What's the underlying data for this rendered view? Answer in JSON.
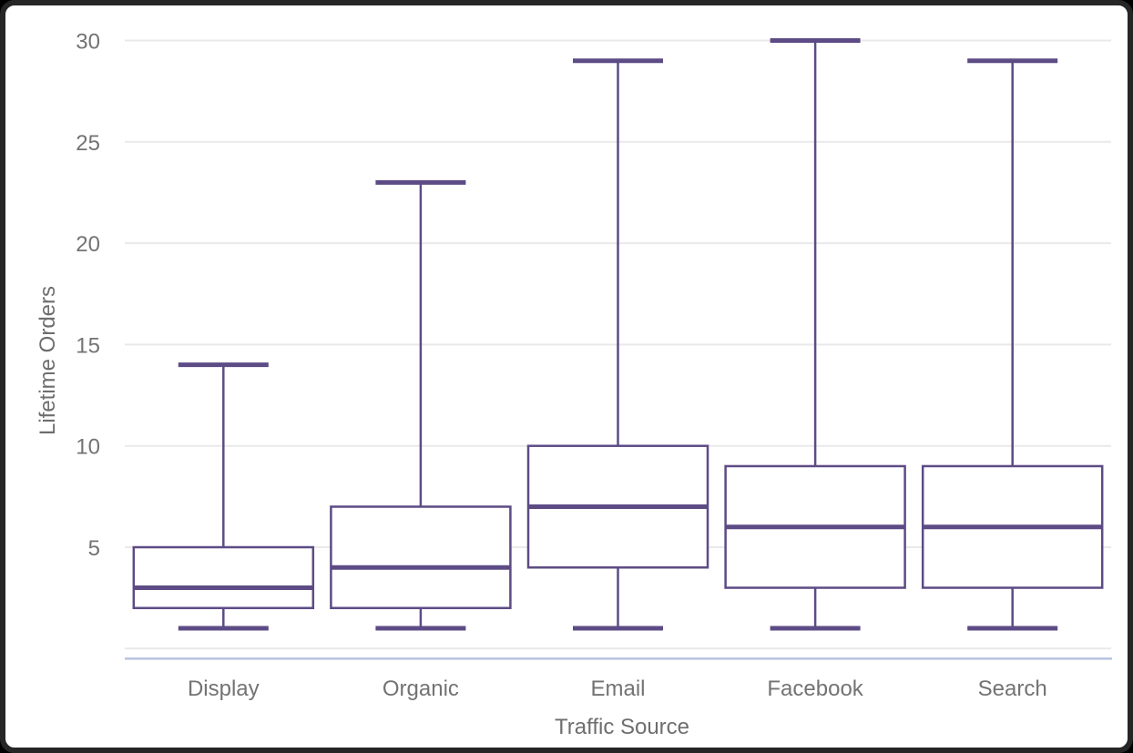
{
  "window": {
    "outer_background": "#000000",
    "frame_color": "#262626",
    "background": "#ffffff"
  },
  "chart_data": {
    "type": "boxplot",
    "title": "",
    "xlabel": "Traffic Source",
    "ylabel": "Lifetime Orders",
    "categories": [
      "Display",
      "Organic",
      "Email",
      "Facebook",
      "Search"
    ],
    "series": [
      {
        "name": "Display",
        "min": 1,
        "q1": 2,
        "median": 3,
        "q3": 5,
        "max": 14
      },
      {
        "name": "Organic",
        "min": 1,
        "q1": 2,
        "median": 4,
        "q3": 7,
        "max": 23
      },
      {
        "name": "Email",
        "min": 1,
        "q1": 4,
        "median": 7,
        "q3": 10,
        "max": 29
      },
      {
        "name": "Facebook",
        "min": 1,
        "q1": 3,
        "median": 6,
        "q3": 9,
        "max": 30
      },
      {
        "name": "Search",
        "min": 1,
        "q1": 3,
        "median": 6,
        "q3": 9,
        "max": 29
      }
    ],
    "yticks": [
      5,
      10,
      15,
      20,
      25,
      30
    ],
    "gridlines": [
      0,
      5,
      10,
      15,
      20,
      25,
      30
    ],
    "ylim": [
      -0.48,
      30.6
    ],
    "grid": true,
    "legend": false,
    "colors": {
      "box_stroke": "#5d4b85",
      "box_fill": "#ffffff",
      "gridline": "#e9e9e9",
      "axis_line": "#b7c4e0",
      "tick_label": "#737373",
      "axis_title": "#6e6e6e"
    }
  }
}
